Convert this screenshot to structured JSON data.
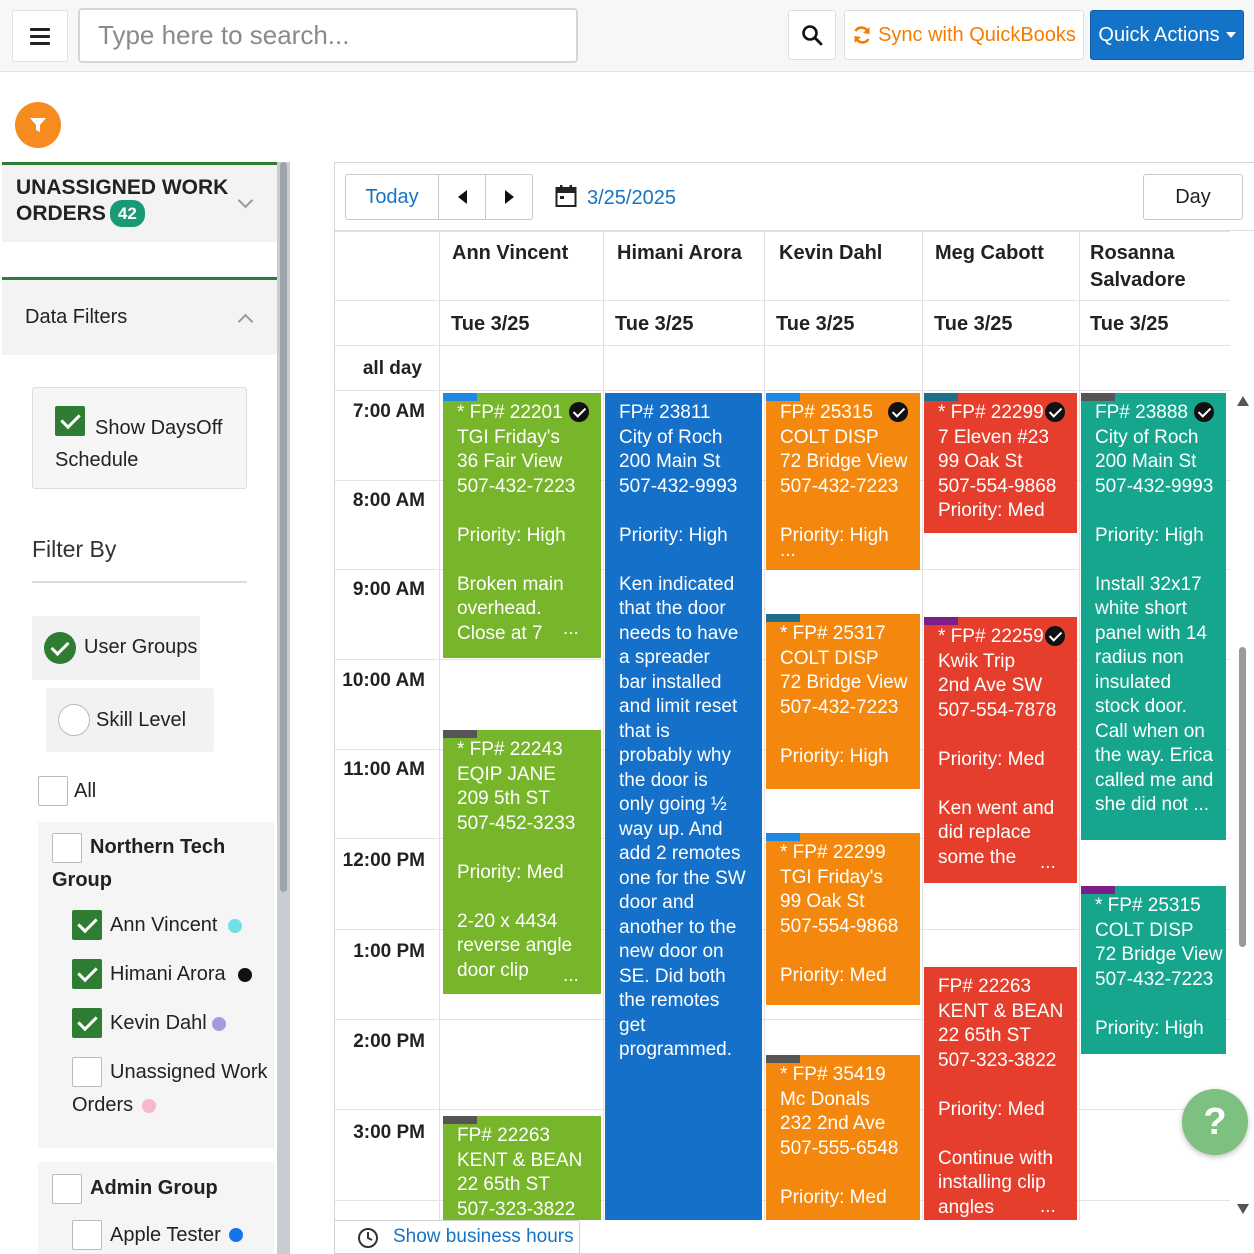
{
  "topbar": {
    "search_placeholder": "Type here to search...",
    "sync_label": "Sync with QuickBooks",
    "quick_actions_label": "Quick Actions"
  },
  "sidebar": {
    "unassigned_title_line1": "UNASSIGNED WORK",
    "unassigned_title_line2": "ORDERS",
    "unassigned_count": "42",
    "data_filters_title": "Data Filters",
    "show_daysoff_label": "Show DaysOff Schedule",
    "filter_by_title": "Filter By",
    "user_groups_label": "User Groups",
    "skill_level_label": "Skill Level",
    "all_label": "All",
    "groups": [
      {
        "name": "Northern Tech Group",
        "members": [
          {
            "name": "Ann Vincent",
            "checked": true,
            "color": "#6fe0e8"
          },
          {
            "name": "Himani Arora",
            "checked": true,
            "color": "#111111"
          },
          {
            "name": "Kevin Dahl",
            "checked": true,
            "color": "#a79be0"
          },
          {
            "name": "Unassigned Work Orders",
            "checked": false,
            "color": "#f5b8cc"
          }
        ]
      },
      {
        "name": "Admin Group",
        "members": [
          {
            "name": "Apple Tester",
            "checked": false,
            "color": "#1673e8"
          }
        ]
      }
    ]
  },
  "calendar": {
    "today_label": "Today",
    "date_label": "3/25/2025",
    "view_label": "Day",
    "all_day_label": "all day",
    "show_business_hours_label": "Show business hours",
    "columns": [
      {
        "name": "Ann Vincent",
        "date": "Tue 3/25"
      },
      {
        "name": "Himani Arora",
        "date": "Tue 3/25"
      },
      {
        "name": "Kevin Dahl",
        "date": "Tue 3/25"
      },
      {
        "name": "Meg Cabott",
        "date": "Tue 3/25"
      },
      {
        "name": "Rosanna Salvadore",
        "date": "Tue 3/25"
      }
    ],
    "times": [
      "7:00 AM",
      "8:00 AM",
      "9:00 AM",
      "10:00 AM",
      "11:00 AM",
      "12:00 PM",
      "1:00 PM",
      "2:00 PM",
      "3:00 PM"
    ],
    "events": [
      {
        "text": "* FP# 22201\nTGI Friday's\n36 Fair View\n507-432-7223\n\nPriority: High\n\nBroken main\noverhead.\nClose at 7",
        "color": "#77b52b",
        "tag": "#1e88e5",
        "done": true
      },
      {
        "text": "* FP# 22243\nEQIP JANE\n209 5th ST\n507-452-3233\n\nPriority: Med\n\n2-20 x 4434\nreverse angle\ndoor clip",
        "color": "#77b52b",
        "tag": "#555555",
        "done": false
      },
      {
        "text": "FP# 22263\nKENT & BEAN\n22 65th ST\n507-323-3822",
        "color": "#77b52b",
        "tag": "#555555",
        "done": false
      },
      {
        "text": "FP# 23811\nCity of Roch\n200 Main St\n507-432-9993\n\nPriority: High\n\nKen indicated\nthat the door\nneeds to have\na spreader\nbar installed\nand limit reset\nthat is\nprobably why\nthe door is\nonly going ½\nway up.  And\nadd 2 remotes\none for the SW\ndoor and\nanother to the\nnew door on\nSE.  Did both\nthe remotes\nget\nprogrammed.",
        "color": "#1570c9",
        "tag": "",
        "done": false
      },
      {
        "text": "FP# 25315\nCOLT DISP\n72 Bridge View\n507-432-7223\n\nPriority: High",
        "color": "#f4880f",
        "tag": "#1e88e5",
        "done": true
      },
      {
        "text": "* FP# 25317\nCOLT DISP\n72 Bridge View\n507-432-7223\n\nPriority: High",
        "color": "#f4880f",
        "tag": "#1d6f8a",
        "done": false
      },
      {
        "text": "* FP# 22299\nTGI Friday's\n99 Oak St\n507-554-9868\n\nPriority: Med",
        "color": "#f4880f",
        "tag": "#1e88e5",
        "done": false
      },
      {
        "text": "* FP# 35419\nMc Donals\n232 2nd Ave\n507-555-6548\n\nPriority: Med",
        "color": "#f4880f",
        "tag": "#555555",
        "done": false
      },
      {
        "text": "* FP# 22299\n7 Eleven #23\n99 Oak St\n507-554-9868\nPriority: Med",
        "color": "#e53e2c",
        "tag": "#1d6f8a",
        "done": true
      },
      {
        "text": "* FP# 22259\nKwik Trip\n2nd Ave SW\n507-554-7878\n\nPriority: Med\n\nKen went and\ndid replace\nsome the",
        "color": "#e53e2c",
        "tag": "#7a1f8a",
        "done": true
      },
      {
        "text": "FP# 22263\nKENT & BEAN\n22 65th ST\n507-323-3822\n\nPriority: Med\n\nContinue with\ninstalling clip\nangles",
        "color": "#e53e2c",
        "tag": "",
        "done": false
      },
      {
        "text": "FP# 23888\nCity of Roch\n200 Main St\n507-432-9993\n\nPriority: High\n\nInstall 32x17\nwhite short\npanel with 14\nradius non\ninsulated\nstock door.\nCall when on\nthe way. Erica\ncalled me and\nshe did not ...",
        "color": "#16a68e",
        "tag": "#555555",
        "done": true
      },
      {
        "text": "* FP# 25315\nCOLT DISP\n72 Bridge View\n507-432-7223\n\nPriority: High",
        "color": "#16a68e",
        "tag": "#7a1f8a",
        "done": false
      }
    ],
    "ellipsis": "..."
  },
  "help_label": "?"
}
